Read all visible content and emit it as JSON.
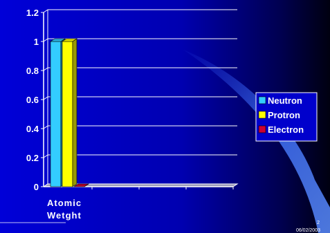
{
  "chart_data": {
    "type": "bar",
    "categories": [
      "Atomic Wetght"
    ],
    "category_lines": [
      "Atomic",
      "Wetght"
    ],
    "series": [
      {
        "name": "Neutron",
        "values": [
          1
        ],
        "color": "#33CCFF"
      },
      {
        "name": "Protron",
        "values": [
          1
        ],
        "color": "#FFFF00"
      },
      {
        "name": "Electron",
        "values": [
          0
        ],
        "color": "#CC0033"
      }
    ],
    "ylim": [
      0,
      1.2
    ],
    "yticks": [
      "0",
      "0.2",
      "0.4",
      "0.6",
      "0.8",
      "1",
      "1.2"
    ],
    "grid": true,
    "legend": "right",
    "background_color": "#0000CC",
    "axis_color": "#FFFFFF"
  },
  "footer": {
    "page_number": "2",
    "date": "06/02/2003"
  }
}
